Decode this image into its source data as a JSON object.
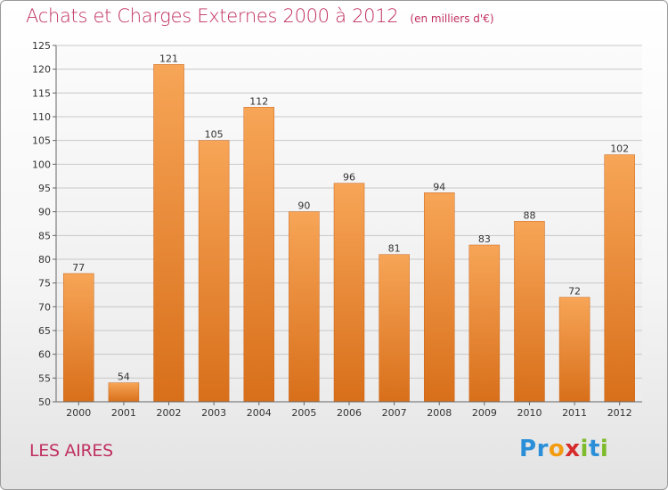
{
  "title": "Achats et Charges Externes 2000 à 2012",
  "unit_note": "(en milliers d'€)",
  "place": "LES AIRES",
  "brand": {
    "letters": [
      "P",
      "r",
      "o",
      "x",
      "i",
      "t",
      "i"
    ],
    "colors": [
      "#2a8fd8",
      "#2a8fd8",
      "#f39c12",
      "#d62b2b",
      "#7dbb2a",
      "#2a8fd8",
      "#7dbb2a"
    ]
  },
  "colors": {
    "title": "#c03060",
    "bar_light": "#f7a557",
    "bar_dark": "#d86f1a"
  },
  "chart_data": {
    "type": "bar",
    "categories": [
      "2000",
      "2001",
      "2002",
      "2003",
      "2004",
      "2005",
      "2006",
      "2007",
      "2008",
      "2009",
      "2010",
      "2011",
      "2012"
    ],
    "values": [
      77,
      54,
      121,
      105,
      112,
      90,
      96,
      81,
      94,
      83,
      88,
      72,
      102
    ],
    "ylim": [
      50,
      125
    ],
    "yticks": [
      50,
      55,
      60,
      65,
      70,
      75,
      80,
      85,
      90,
      95,
      100,
      105,
      110,
      115,
      120,
      125
    ],
    "grid": true
  }
}
